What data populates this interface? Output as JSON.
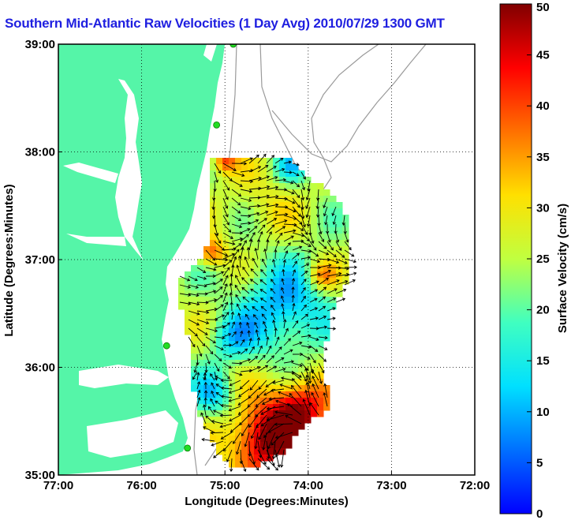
{
  "chart_data": {
    "type": "heatmap",
    "title": "Southern Mid-Atlantic Raw Velocities (1 Day Avg) 2010/07/29 1300 GMT",
    "xlabel": "Longitude (Degrees:Minutes)",
    "ylabel": "Latitude (Degrees:Minutes)",
    "xlim": [
      -77,
      -72
    ],
    "ylim": [
      35,
      39
    ],
    "x_ticks": [
      {
        "value": -77,
        "label": "77:00"
      },
      {
        "value": -76,
        "label": "76:00"
      },
      {
        "value": -75,
        "label": "75:00"
      },
      {
        "value": -74,
        "label": "74:00"
      },
      {
        "value": -73,
        "label": "73:00"
      },
      {
        "value": -72,
        "label": "72:00"
      }
    ],
    "y_ticks": [
      {
        "value": 35,
        "label": "35:00"
      },
      {
        "value": 36,
        "label": "36:00"
      },
      {
        "value": 37,
        "label": "37:00"
      },
      {
        "value": 38,
        "label": "38:00"
      },
      {
        "value": 39,
        "label": "39:00"
      }
    ],
    "grid": true,
    "colorbar": {
      "label": "Surface Velocity (cm/s)",
      "range": [
        0,
        50
      ],
      "ticks": [
        0,
        5,
        10,
        15,
        20,
        25,
        30,
        35,
        40,
        45,
        50
      ],
      "position": "right"
    },
    "land_color": "#55f5a8",
    "station_color": "#22dd22",
    "stations": [
      {
        "lon": -74.9,
        "lat": 39.0
      },
      {
        "lon": -75.1,
        "lat": 38.25
      },
      {
        "lon": -75.7,
        "lat": 36.2
      },
      {
        "lon": -75.45,
        "lat": 35.25
      }
    ]
  }
}
